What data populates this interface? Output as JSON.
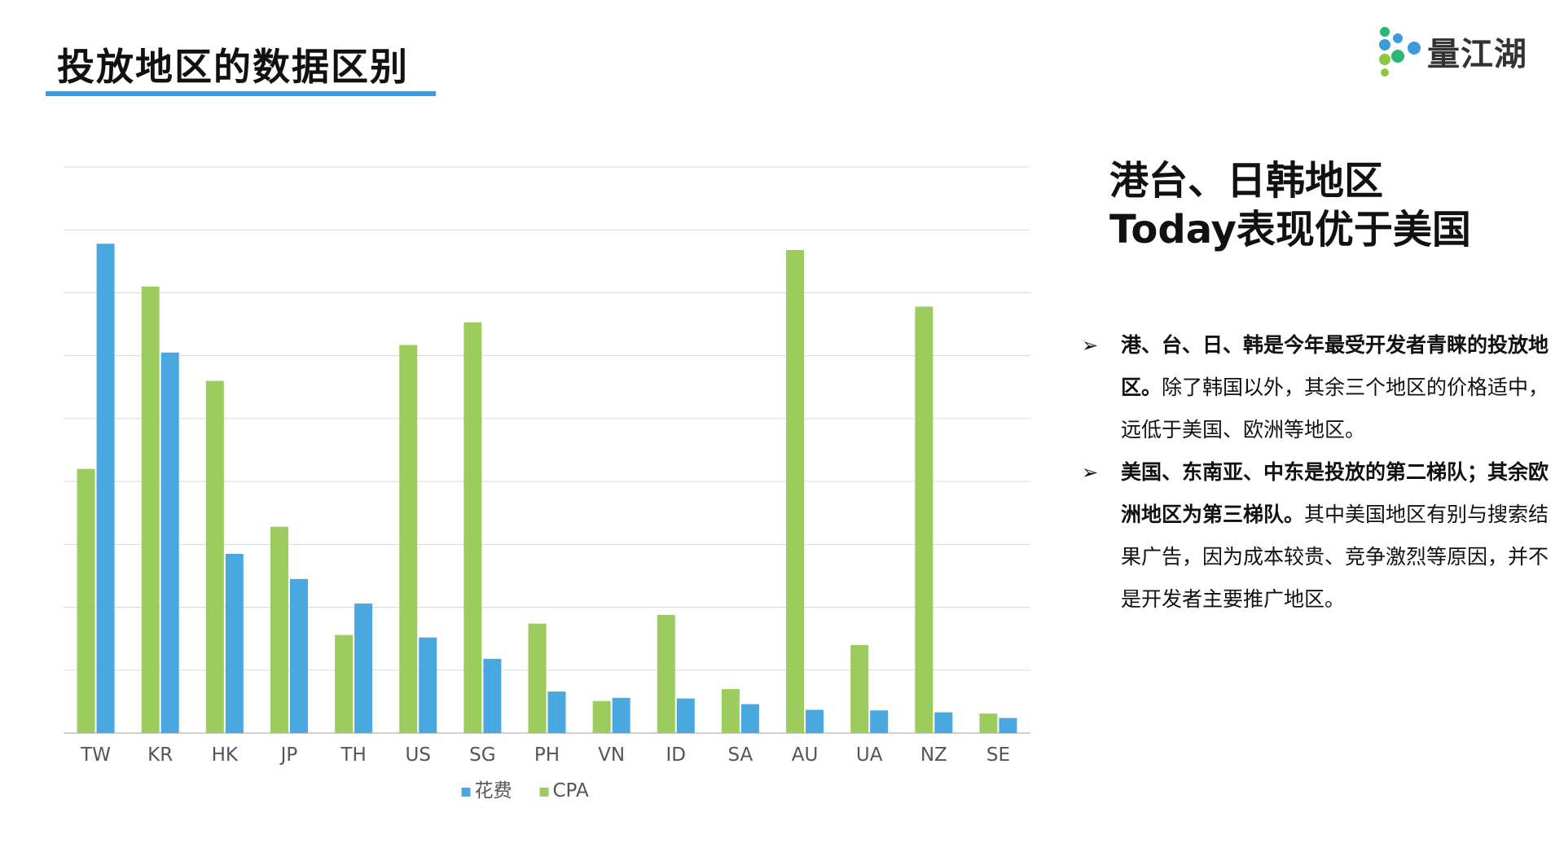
{
  "page": {
    "title": "投放地区的数据区别"
  },
  "logo": {
    "text": "量江湖",
    "icon": "logo-mark-icon",
    "colors": [
      "#2bb673",
      "#3d9bdb",
      "#8dc63f"
    ]
  },
  "headline": {
    "line1": "港台、日韩地区",
    "line2": "Today表现优于美国"
  },
  "bullets": [
    {
      "bold": "港、台、日、韩是今年最受开发者青睐的投放地区。",
      "normal": "除了韩国以外，其余三个地区的价格适中，远低于美国、欧洲等地区。"
    },
    {
      "bold": "美国、东南亚、中东是投放的第二梯队；其余欧洲地区为第三梯队。",
      "normal": "其中美国地区有别与搜索结果广告，因为成本较贵、竞争激烈等原因，并不是开发者主要推广地区。"
    }
  ],
  "colors": {
    "accent": "#3d9bdb",
    "spend": "#4aa8e0",
    "cpa": "#9ccc5e",
    "grid": "#d9d9d9"
  },
  "chart_data": {
    "type": "bar",
    "categories": [
      "TW",
      "KR",
      "HK",
      "JP",
      "TH",
      "US",
      "SG",
      "PH",
      "VN",
      "ID",
      "SA",
      "AU",
      "UA",
      "NZ",
      "SE"
    ],
    "series": [
      {
        "name": "花费",
        "color": "#4aa8e0",
        "values": [
          7.78,
          6.05,
          2.85,
          2.45,
          2.06,
          1.52,
          1.18,
          0.66,
          0.56,
          0.55,
          0.46,
          0.37,
          0.36,
          0.33,
          0.24
        ]
      },
      {
        "name": "CPA",
        "color": "#9ccc5e",
        "values": [
          4.2,
          7.1,
          5.6,
          3.28,
          1.56,
          6.17,
          6.53,
          1.74,
          0.51,
          1.88,
          0.7,
          7.68,
          1.4,
          6.78,
          0.31
        ]
      }
    ],
    "ylim": [
      0,
      9
    ],
    "y_ticks_shown": false,
    "grid": true,
    "legend": "bottom-center"
  }
}
